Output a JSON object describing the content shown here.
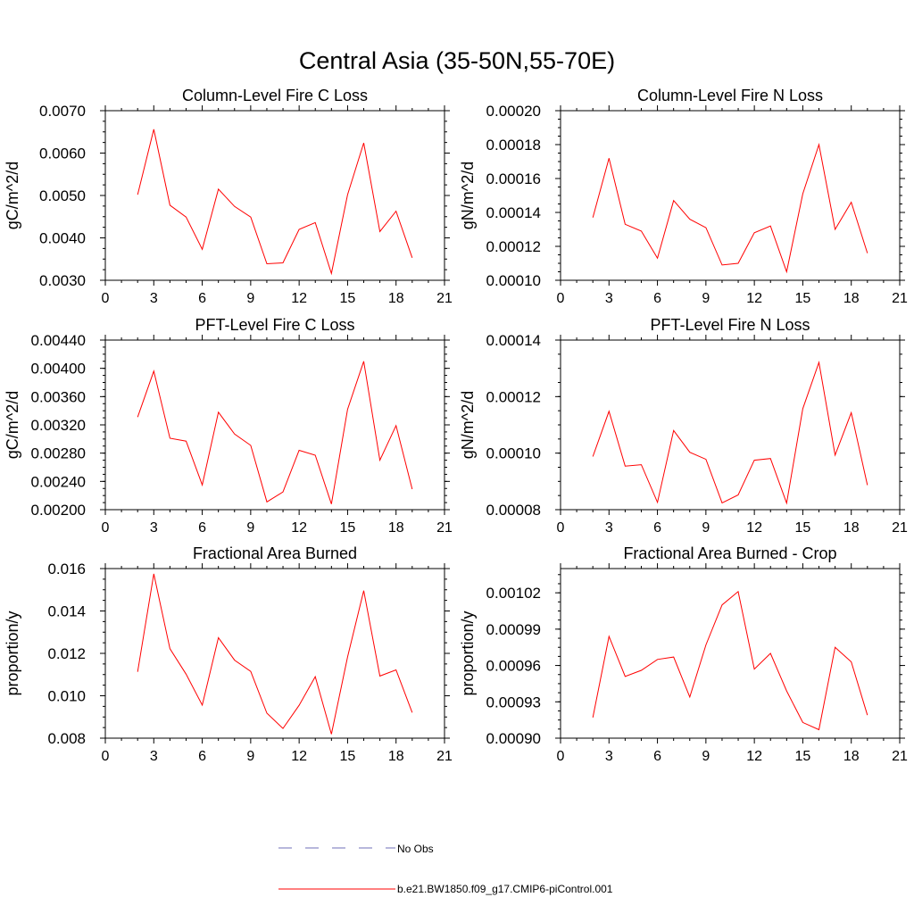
{
  "figure": {
    "title": "Central Asia (35-50N,55-70E)",
    "legend": [
      {
        "label": "No Obs",
        "color": "#6f6fb8",
        "dashed": true
      },
      {
        "label": "b.e21.BW1850.f09_g17.CMIP6-piControl.001",
        "color": "#ff0000",
        "dashed": false
      }
    ]
  },
  "chart_data": [
    {
      "type": "line",
      "title": "Column-Level Fire C Loss",
      "ylabel": "gC/m^2/d",
      "xlim": [
        0,
        21
      ],
      "xticks": [
        "0",
        "3",
        "6",
        "9",
        "12",
        "15",
        "18",
        "21"
      ],
      "ylim": [
        0.003,
        0.007
      ],
      "yticks": [
        "0.0030",
        "0.0040",
        "0.0050",
        "0.0060",
        "0.0070"
      ],
      "series": [
        {
          "color": "#ff0000",
          "x": [
            2,
            3,
            4,
            5,
            6,
            7,
            8,
            9,
            10,
            11,
            12,
            13,
            14,
            15,
            16,
            17,
            18,
            19
          ],
          "y": [
            0.00502,
            0.00656,
            0.00477,
            0.00449,
            0.00373,
            0.00515,
            0.00474,
            0.00449,
            0.00339,
            0.00341,
            0.0042,
            0.00436,
            0.00316,
            0.00502,
            0.00624,
            0.00415,
            0.00463,
            0.00353
          ]
        }
      ]
    },
    {
      "type": "line",
      "title": "Column-Level Fire N Loss",
      "ylabel": "gN/m^2/d",
      "xlim": [
        0,
        21
      ],
      "xticks": [
        "0",
        "3",
        "6",
        "9",
        "12",
        "15",
        "18",
        "21"
      ],
      "ylim": [
        0.0001,
        0.0002
      ],
      "yticks": [
        "0.00010",
        "0.00012",
        "0.00014",
        "0.00016",
        "0.00018",
        "0.00020"
      ],
      "series": [
        {
          "color": "#ff0000",
          "x": [
            2,
            3,
            4,
            5,
            6,
            7,
            8,
            9,
            10,
            11,
            12,
            13,
            14,
            15,
            16,
            17,
            18,
            19
          ],
          "y": [
            0.000137,
            0.000172,
            0.000133,
            0.000129,
            0.000113,
            0.000147,
            0.000136,
            0.000131,
            0.000109,
            0.00011,
            0.000128,
            0.000132,
            0.000105,
            0.000151,
            0.00018,
            0.00013,
            0.000146,
            0.000116
          ]
        }
      ]
    },
    {
      "type": "line",
      "title": "PFT-Level Fire C Loss",
      "ylabel": "gC/m^2/d",
      "xlim": [
        0,
        21
      ],
      "xticks": [
        "0",
        "3",
        "6",
        "9",
        "12",
        "15",
        "18",
        "21"
      ],
      "ylim": [
        0.002,
        0.0044
      ],
      "yticks": [
        "0.00200",
        "0.00240",
        "0.00280",
        "0.00320",
        "0.00360",
        "0.00400",
        "0.00440"
      ],
      "series": [
        {
          "color": "#ff0000",
          "x": [
            2,
            3,
            4,
            5,
            6,
            7,
            8,
            9,
            10,
            11,
            12,
            13,
            14,
            15,
            16,
            17,
            18,
            19
          ],
          "y": [
            0.00331,
            0.00396,
            0.00301,
            0.00297,
            0.00235,
            0.00338,
            0.00307,
            0.00291,
            0.00211,
            0.00225,
            0.00284,
            0.00277,
            0.00208,
            0.00342,
            0.0041,
            0.0027,
            0.00319,
            0.00229
          ]
        }
      ]
    },
    {
      "type": "line",
      "title": "PFT-Level Fire N Loss",
      "ylabel": "gN/m^2/d",
      "xlim": [
        0,
        21
      ],
      "xticks": [
        "0",
        "3",
        "6",
        "9",
        "12",
        "15",
        "18",
        "21"
      ],
      "ylim": [
        8e-05,
        0.00014
      ],
      "yticks": [
        "0.00008",
        "0.00010",
        "0.00012",
        "0.00014"
      ],
      "series": [
        {
          "color": "#ff0000",
          "x": [
            2,
            3,
            4,
            5,
            6,
            7,
            8,
            9,
            10,
            11,
            12,
            13,
            14,
            15,
            16,
            17,
            18,
            19
          ],
          "y": [
            9.88e-05,
            0.0001148,
            9.54e-05,
            9.59e-05,
            8.26e-05,
            0.000108,
            0.0001003,
            9.78e-05,
            8.24e-05,
            8.52e-05,
            9.75e-05,
            9.81e-05,
            8.23e-05,
            0.0001157,
            0.0001321,
            9.93e-05,
            0.0001143,
            8.87e-05
          ]
        }
      ]
    },
    {
      "type": "line",
      "title": "Fractional Area Burned",
      "ylabel": "proportion/y",
      "xlim": [
        0,
        21
      ],
      "xticks": [
        "0",
        "3",
        "6",
        "9",
        "12",
        "15",
        "18",
        "21"
      ],
      "ylim": [
        0.008,
        0.016
      ],
      "yticks": [
        "0.008",
        "0.010",
        "0.012",
        "0.014",
        "0.016"
      ],
      "series": [
        {
          "color": "#ff0000",
          "x": [
            2,
            3,
            4,
            5,
            6,
            7,
            8,
            9,
            10,
            11,
            12,
            13,
            14,
            15,
            16,
            17,
            18,
            19
          ],
          "y": [
            0.01113,
            0.01575,
            0.01222,
            0.01102,
            0.00956,
            0.01274,
            0.01168,
            0.01115,
            0.00918,
            0.00846,
            0.00955,
            0.0109,
            0.00819,
            0.01183,
            0.01496,
            0.01093,
            0.01122,
            0.00921
          ]
        }
      ]
    },
    {
      "type": "line",
      "title": "Fractional Area Burned - Crop",
      "ylabel": "proportion/y",
      "xlim": [
        0,
        21
      ],
      "xticks": [
        "0",
        "3",
        "6",
        "9",
        "12",
        "15",
        "18",
        "21"
      ],
      "ylim": [
        0.0009,
        0.00104
      ],
      "yticks": [
        "0.00090",
        "0.00093",
        "0.00096",
        "0.00099",
        "0.00102"
      ],
      "series": [
        {
          "color": "#ff0000",
          "x": [
            2,
            3,
            4,
            5,
            6,
            7,
            8,
            9,
            10,
            11,
            12,
            13,
            14,
            15,
            16,
            17,
            18,
            19
          ],
          "y": [
            0.000917,
            0.000984,
            0.000951,
            0.000956,
            0.000965,
            0.000967,
            0.000934,
            0.000977,
            0.00101,
            0.001021,
            0.000957,
            0.00097,
            0.000939,
            0.000913,
            0.000907,
            0.000975,
            0.000963,
            0.000919
          ]
        }
      ]
    }
  ]
}
